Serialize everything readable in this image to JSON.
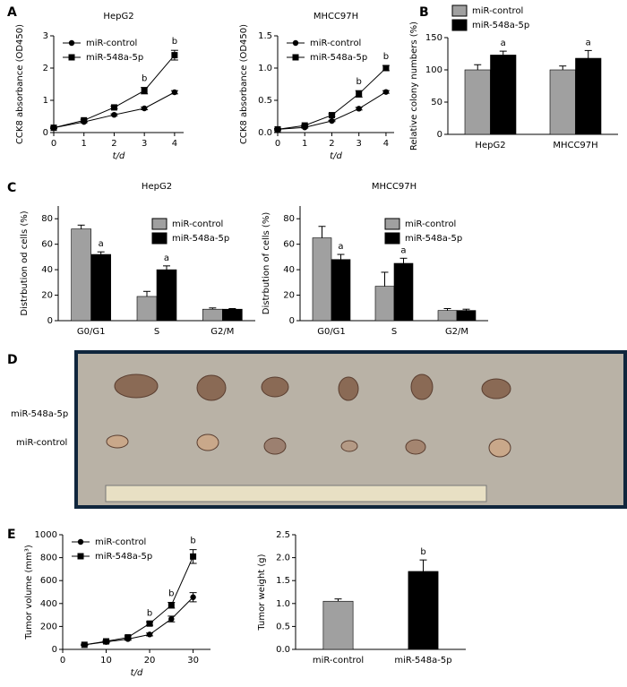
{
  "chart_data": [
    {
      "type": "line",
      "panel": "A",
      "title": "HepG2",
      "x_label": "t/d",
      "y_label": "CCK8 absorbance (OD450)",
      "x": [
        0,
        1,
        2,
        3,
        4
      ],
      "xlim": [
        0,
        4.3
      ],
      "xticks": [
        0,
        1,
        2,
        3,
        4
      ],
      "ylim": [
        0,
        3
      ],
      "yticks": [
        0,
        1,
        2,
        3
      ],
      "legend": "upper left",
      "series": [
        {
          "name": "miR-control",
          "color": "#000000",
          "marker": "circle",
          "values": [
            0.15,
            0.33,
            0.55,
            0.75,
            1.25
          ],
          "errors": [
            0.02,
            0.02,
            0.03,
            0.04,
            0.05
          ]
        },
        {
          "name": "miR-548a-5p",
          "color": "#000000",
          "marker": "square",
          "values": [
            0.15,
            0.38,
            0.78,
            1.3,
            2.4
          ],
          "errors": [
            0.02,
            0.03,
            0.04,
            0.1,
            0.15
          ]
        }
      ],
      "annotations": [
        null,
        null,
        null,
        "b",
        "b"
      ]
    },
    {
      "type": "line",
      "title": "MHCC97H",
      "x_label": "t/d",
      "y_label": "CCK8 absorbance (OD450)",
      "x": [
        0,
        1,
        2,
        3,
        4
      ],
      "xlim": [
        0,
        4.3
      ],
      "xticks": [
        0,
        1,
        2,
        3,
        4
      ],
      "ylim": [
        0,
        1.5
      ],
      "yticks": [
        {
          "value": 0,
          "label": "0.0"
        },
        0.5,
        {
          "value": 1,
          "label": "1.0"
        },
        1.5
      ],
      "legend": "upper left",
      "series": [
        {
          "name": "miR-control",
          "color": "#000000",
          "marker": "circle",
          "values": [
            0.05,
            0.08,
            0.18,
            0.37,
            0.63
          ],
          "errors": [
            0.01,
            0.01,
            0.01,
            0.02,
            0.02
          ]
        },
        {
          "name": "miR-548a-5p",
          "color": "#000000",
          "marker": "square",
          "values": [
            0.05,
            0.11,
            0.27,
            0.6,
            1.0
          ],
          "errors": [
            0.01,
            0.01,
            0.02,
            0.05,
            0.04
          ]
        }
      ],
      "annotations": [
        null,
        null,
        null,
        "b",
        "b"
      ]
    },
    {
      "type": "bar",
      "panel": "B",
      "y_label": "Relative colony numbers (%)",
      "categories": [
        "HepG2",
        "MHCC97H"
      ],
      "ylim": [
        0,
        150
      ],
      "yticks": [
        0,
        50,
        100,
        150
      ],
      "legend": "top",
      "series": [
        {
          "name": "miR-control",
          "color": "#a0a0a0",
          "values": [
            100,
            100
          ],
          "errors": [
            8,
            6
          ]
        },
        {
          "name": "miR-548a-5p",
          "color": "#000000",
          "values": [
            123,
            118
          ],
          "errors": [
            6,
            12
          ]
        }
      ],
      "annotations": [
        "a",
        "a"
      ]
    },
    {
      "type": "bar",
      "panel": "C",
      "title": "HepG2",
      "y_label": "Distrbution od cells (%)",
      "categories": [
        "G0/G1",
        "S",
        "G2/M"
      ],
      "ylim": [
        0,
        90
      ],
      "yticks": [
        0,
        20,
        40,
        60,
        80
      ],
      "legend": "upper right",
      "series": [
        {
          "name": "miR-control",
          "color": "#a0a0a0",
          "values": [
            72,
            19,
            9
          ],
          "errors": [
            3,
            4,
            1
          ]
        },
        {
          "name": "miR-548a-5p",
          "color": "#000000",
          "values": [
            52,
            40,
            9
          ],
          "errors": [
            2,
            3,
            0.5
          ]
        }
      ],
      "annotations": [
        "a",
        "a",
        null
      ]
    },
    {
      "type": "bar",
      "title": "MHCC97H",
      "y_label": "Distrbution of cells (%)",
      "categories": [
        "G0/G1",
        "S",
        "G2/M"
      ],
      "ylim": [
        0,
        90
      ],
      "yticks": [
        0,
        20,
        40,
        60,
        80
      ],
      "legend": "upper right",
      "series": [
        {
          "name": "miR-control",
          "color": "#a0a0a0",
          "values": [
            65,
            27,
            8
          ],
          "errors": [
            9,
            11,
            1.5
          ]
        },
        {
          "name": "miR-548a-5p",
          "color": "#000000",
          "values": [
            48,
            45,
            8
          ],
          "errors": [
            4,
            4,
            1
          ]
        }
      ],
      "annotations": [
        "a",
        "a",
        null
      ]
    },
    {
      "type": "line",
      "panel": "E",
      "x_label": "t/d",
      "y_label": "Tumor volume (mm³)",
      "x": [
        5,
        10,
        15,
        20,
        25,
        30
      ],
      "xlim": [
        0,
        34
      ],
      "xticks": [
        0,
        10,
        20,
        30
      ],
      "ylim": [
        0,
        1000
      ],
      "yticks": [
        0,
        200,
        400,
        600,
        800,
        1000
      ],
      "legend": "upper left",
      "series": [
        {
          "name": "miR-control",
          "color": "#000000",
          "marker": "circle",
          "values": [
            40,
            65,
            90,
            130,
            265,
            455
          ],
          "errors": [
            5,
            8,
            10,
            12,
            25,
            40
          ]
        },
        {
          "name": "miR-548a-5p",
          "color": "#000000",
          "marker": "square",
          "values": [
            40,
            70,
            105,
            225,
            385,
            810
          ],
          "errors": [
            5,
            8,
            12,
            15,
            25,
            60
          ]
        }
      ],
      "annotations": [
        null,
        null,
        null,
        "b",
        "b",
        "b"
      ]
    },
    {
      "type": "bar",
      "y_label": "Tumor weight (g)",
      "categories": [
        "miR-control",
        "miR-548a-5p"
      ],
      "ylim": [
        0,
        2.5
      ],
      "yticks": [
        {
          "value": 0,
          "label": "0.0"
        },
        0.5,
        {
          "value": 1,
          "label": "1.0"
        },
        1.5,
        {
          "value": 2,
          "label": "2.0"
        },
        2.5
      ],
      "values": [
        1.05,
        1.7
      ],
      "errors": [
        0.05,
        0.25
      ],
      "colors": [
        "#a0a0a0",
        "#000000"
      ],
      "annotations": [
        null,
        "b"
      ]
    }
  ],
  "photo": {
    "panel": "D",
    "row_labels": [
      "miR-548a-5p",
      "miR-control"
    ]
  }
}
